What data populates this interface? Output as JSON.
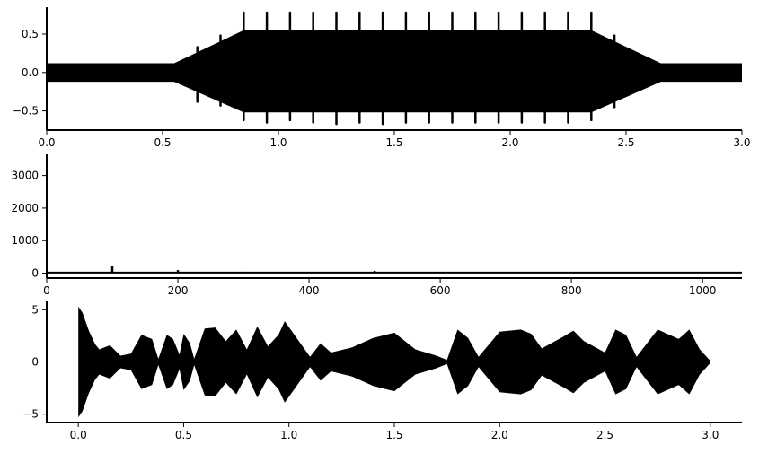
{
  "chart_data": [
    {
      "type": "line",
      "panel": "top",
      "description_of_signal": "amplitude-modulated oscillation with periodic spikes",
      "xlim": [
        0.0,
        3.0
      ],
      "ylim": [
        -0.75,
        0.85
      ],
      "x_ticks": [
        0.0,
        0.5,
        1.0,
        1.5,
        2.0,
        2.5,
        3.0
      ],
      "x_tick_labels": [
        "0.0",
        "0.5",
        "1.0",
        "1.5",
        "2.0",
        "2.5",
        "3.0"
      ],
      "y_ticks": [
        -0.5,
        0.0,
        0.5
      ],
      "y_tick_labels": [
        "−0.5",
        "0.0",
        "0.5"
      ],
      "envelope": {
        "x": [
          0.0,
          0.55,
          0.85,
          2.35,
          2.65,
          3.0
        ],
        "upper": [
          0.12,
          0.12,
          0.55,
          0.55,
          0.12,
          0.12
        ],
        "lower": [
          -0.12,
          -0.12,
          -0.52,
          -0.52,
          -0.12,
          -0.12
        ]
      },
      "spikes": {
        "x": [
          0.65,
          0.75,
          0.85,
          0.95,
          1.05,
          1.15,
          1.25,
          1.35,
          1.45,
          1.55,
          1.65,
          1.75,
          1.85,
          1.95,
          2.05,
          2.15,
          2.25,
          2.35,
          2.45
        ],
        "upper": [
          0.33,
          0.48,
          0.78,
          0.78,
          0.78,
          0.78,
          0.78,
          0.78,
          0.78,
          0.78,
          0.78,
          0.78,
          0.78,
          0.78,
          0.78,
          0.78,
          0.78,
          0.78,
          0.48
        ],
        "lower": [
          -0.38,
          -0.43,
          -0.62,
          -0.65,
          -0.62,
          -0.65,
          -0.67,
          -0.65,
          -0.67,
          -0.65,
          -0.65,
          -0.65,
          -0.65,
          -0.65,
          -0.65,
          -0.65,
          -0.65,
          -0.62,
          -0.45
        ]
      },
      "grid": false,
      "color": "#000000"
    },
    {
      "type": "line",
      "panel": "middle",
      "xlim": [
        0,
        1060
      ],
      "ylim": [
        -150,
        3650
      ],
      "x_ticks": [
        0,
        200,
        400,
        600,
        800,
        1000
      ],
      "x_tick_labels": [
        "0",
        "200",
        "400",
        "600",
        "800",
        "1000"
      ],
      "y_ticks": [
        0,
        1000,
        2000,
        3000
      ],
      "y_tick_labels": [
        "0",
        "1000",
        "2000",
        "3000"
      ],
      "baseline": 20,
      "peaks": {
        "x": [
          100,
          200,
          300,
          400,
          500,
          600,
          700,
          800,
          900,
          1000
        ],
        "y": [
          220,
          95,
          45,
          35,
          70,
          30,
          30,
          25,
          25,
          25
        ]
      },
      "grid": false,
      "color": "#000000"
    },
    {
      "type": "line",
      "panel": "bottom",
      "xlim": [
        -0.15,
        3.15
      ],
      "ylim": [
        -5.8,
        5.8
      ],
      "x_ticks": [
        0.0,
        0.5,
        1.0,
        1.5,
        2.0,
        2.5,
        3.0
      ],
      "x_tick_labels": [
        "0.0",
        "0.5",
        "1.0",
        "1.5",
        "2.0",
        "2.5",
        "3.0"
      ],
      "y_ticks": [
        -5,
        0,
        5
      ],
      "y_tick_labels": [
        "−5",
        "0",
        "5"
      ],
      "envelope": {
        "x": [
          0.0,
          0.02,
          0.05,
          0.08,
          0.1,
          0.15,
          0.2,
          0.25,
          0.3,
          0.35,
          0.38,
          0.42,
          0.45,
          0.48,
          0.5,
          0.53,
          0.55,
          0.6,
          0.65,
          0.7,
          0.75,
          0.8,
          0.85,
          0.9,
          0.95,
          0.98,
          1.05,
          1.1,
          1.15,
          1.2,
          1.3,
          1.4,
          1.5,
          1.6,
          1.7,
          1.75,
          1.8,
          1.85,
          1.9,
          2.0,
          2.1,
          2.15,
          2.2,
          2.3,
          2.35,
          2.4,
          2.5,
          2.55,
          2.6,
          2.65,
          2.75,
          2.85,
          2.9,
          2.95,
          3.0
        ],
        "upper": [
          5.3,
          4.7,
          3.0,
          1.7,
          1.2,
          1.6,
          0.6,
          0.8,
          2.6,
          2.2,
          0.3,
          2.6,
          2.2,
          0.7,
          2.7,
          1.8,
          0.3,
          3.2,
          3.3,
          2.0,
          3.1,
          1.2,
          3.4,
          1.5,
          2.6,
          3.9,
          1.9,
          0.5,
          1.8,
          0.9,
          1.4,
          2.3,
          2.8,
          1.2,
          0.6,
          0.2,
          3.1,
          2.3,
          0.5,
          2.9,
          3.1,
          2.7,
          1.3,
          2.4,
          3.0,
          2.0,
          0.9,
          3.1,
          2.6,
          0.5,
          3.1,
          2.2,
          3.1,
          1.2,
          0.1
        ],
        "lower": [
          -5.3,
          -4.7,
          -3.0,
          -1.7,
          -1.2,
          -1.6,
          -0.6,
          -0.8,
          -2.6,
          -2.2,
          -0.3,
          -2.6,
          -2.2,
          -0.7,
          -2.7,
          -1.8,
          -0.3,
          -3.2,
          -3.3,
          -2.0,
          -3.1,
          -1.2,
          -3.4,
          -1.5,
          -2.6,
          -3.9,
          -1.9,
          -0.5,
          -1.8,
          -0.9,
          -1.4,
          -2.3,
          -2.8,
          -1.2,
          -0.6,
          -0.2,
          -3.1,
          -2.3,
          -0.5,
          -2.9,
          -3.1,
          -2.7,
          -1.3,
          -2.4,
          -3.0,
          -2.0,
          -0.9,
          -3.1,
          -2.6,
          -0.5,
          -3.1,
          -2.2,
          -3.1,
          -1.2,
          -0.1
        ]
      },
      "grid": false,
      "color": "#000000"
    }
  ]
}
